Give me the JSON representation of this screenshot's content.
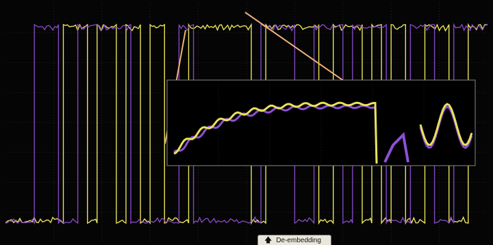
{
  "colors": {
    "background": "#050505",
    "grid": "#2f2f2f",
    "trace_yellow": "#e8e35a",
    "trace_purple": "#8f4fd6",
    "zoom_line": "#f0b27a",
    "label_bg": "#e9e6dc"
  },
  "label": {
    "text": "De-embedding",
    "icon": "arrow-up-icon"
  },
  "chart_data": {
    "type": "line",
    "grid": true,
    "series": [
      {
        "color": "#e8e35a",
        "segments": [
          [
            0,
            0
          ],
          [
            12,
            1
          ],
          [
            17,
            0
          ],
          [
            19,
            1
          ],
          [
            23,
            0
          ],
          [
            25,
            1
          ],
          [
            28,
            0
          ],
          [
            30,
            1
          ],
          [
            33,
            0
          ],
          [
            38,
            1
          ],
          [
            51,
            0
          ],
          [
            54,
            1
          ],
          [
            65,
            0
          ],
          [
            68,
            1
          ],
          [
            74,
            0
          ],
          [
            76,
            1
          ],
          [
            78,
            0
          ],
          [
            80,
            1
          ],
          [
            83,
            0
          ],
          [
            87,
            1
          ],
          [
            92,
            0
          ],
          [
            96,
            1
          ],
          [
            100,
            0
          ]
        ]
      },
      {
        "color": "#8f4fd6",
        "segments": [
          [
            0,
            0
          ],
          [
            6,
            1
          ],
          [
            11,
            0
          ],
          [
            15,
            1
          ],
          [
            26,
            0
          ],
          [
            36,
            1
          ],
          [
            39,
            0
          ],
          [
            53,
            1
          ],
          [
            60,
            0
          ],
          [
            64,
            1
          ],
          [
            70,
            0
          ],
          [
            72,
            1
          ],
          [
            79,
            0
          ],
          [
            84,
            1
          ],
          [
            89,
            0
          ],
          [
            93,
            1
          ],
          [
            100,
            0
          ]
        ]
      }
    ]
  }
}
